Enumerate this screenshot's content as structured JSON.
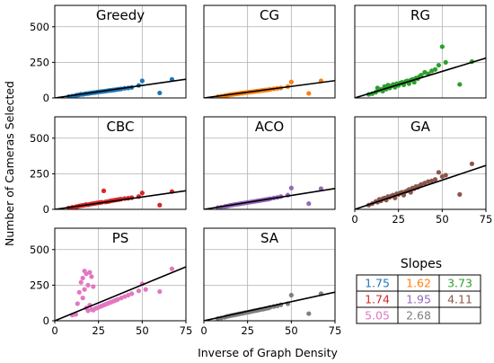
{
  "figure": {
    "xlabel": "Inverse of Graph Density",
    "ylabel": "Number of Cameras Selected"
  },
  "slopes_table": {
    "title": "Slopes",
    "rows": [
      [
        {
          "text": "1.75",
          "color": "#1f77b4"
        },
        {
          "text": "1.62",
          "color": "#ff7f0e"
        },
        {
          "text": "3.73",
          "color": "#2ca02c"
        }
      ],
      [
        {
          "text": "1.74",
          "color": "#d62728"
        },
        {
          "text": "1.95",
          "color": "#9467bd"
        },
        {
          "text": "4.11",
          "color": "#8c564b"
        }
      ],
      [
        {
          "text": "5.05",
          "color": "#e377c2"
        },
        {
          "text": "2.68",
          "color": "#7f7f7f"
        },
        {
          "text": "",
          "color": "#000000"
        }
      ]
    ]
  },
  "chart_data": [
    {
      "type": "scatter",
      "title": "Greedy",
      "color": "#1f77b4",
      "slope": 1.75,
      "xlim": [
        0,
        75
      ],
      "ylim": [
        0,
        650
      ],
      "xticks": [
        0,
        25,
        50,
        75
      ],
      "yticks": [
        0,
        250,
        500
      ],
      "grid": true,
      "x": [
        8,
        10,
        12,
        13,
        14,
        15,
        16,
        17,
        18,
        19,
        20,
        21,
        22,
        23,
        24,
        25,
        26,
        27,
        28,
        29,
        30,
        31,
        32,
        33,
        34,
        35,
        36,
        37,
        38,
        40,
        42,
        44,
        48,
        50,
        60,
        67
      ],
      "y": [
        10,
        13,
        18,
        20,
        22,
        26,
        25,
        28,
        30,
        31,
        33,
        35,
        37,
        38,
        40,
        42,
        44,
        45,
        46,
        48,
        50,
        52,
        53,
        55,
        56,
        58,
        60,
        62,
        63,
        68,
        70,
        74,
        88,
        120,
        35,
        130
      ]
    },
    {
      "type": "scatter",
      "title": "CG",
      "color": "#ff7f0e",
      "slope": 1.62,
      "xlim": [
        0,
        75
      ],
      "ylim": [
        0,
        650
      ],
      "xticks": [
        0,
        25,
        50,
        75
      ],
      "yticks": [
        0,
        250,
        500
      ],
      "grid": true,
      "x": [
        8,
        10,
        12,
        13,
        14,
        15,
        16,
        17,
        18,
        19,
        20,
        21,
        22,
        23,
        24,
        25,
        26,
        27,
        28,
        29,
        30,
        31,
        32,
        33,
        34,
        35,
        36,
        37,
        38,
        40,
        42,
        44,
        48,
        50,
        60,
        67
      ],
      "y": [
        9,
        12,
        16,
        18,
        20,
        23,
        24,
        26,
        28,
        29,
        31,
        33,
        34,
        36,
        38,
        39,
        41,
        42,
        44,
        45,
        47,
        48,
        50,
        52,
        53,
        55,
        56,
        58,
        60,
        64,
        67,
        70,
        80,
        112,
        32,
        120
      ]
    },
    {
      "type": "scatter",
      "title": "RG",
      "color": "#2ca02c",
      "slope": 3.73,
      "xlim": [
        0,
        75
      ],
      "ylim": [
        0,
        650
      ],
      "xticks": [
        0,
        25,
        50,
        75
      ],
      "yticks": [
        0,
        250,
        500
      ],
      "grid": true,
      "x": [
        8,
        10,
        12,
        13,
        14,
        15,
        16,
        17,
        18,
        19,
        20,
        21,
        22,
        23,
        24,
        25,
        26,
        27,
        28,
        29,
        30,
        31,
        32,
        33,
        34,
        35,
        36,
        37,
        38,
        40,
        42,
        44,
        46,
        48,
        50,
        52,
        60,
        67
      ],
      "y": [
        25,
        30,
        40,
        70,
        55,
        60,
        48,
        80,
        62,
        90,
        70,
        85,
        95,
        75,
        100,
        88,
        105,
        110,
        92,
        115,
        120,
        100,
        125,
        130,
        110,
        140,
        135,
        150,
        160,
        180,
        170,
        190,
        200,
        230,
        360,
        250,
        95,
        255
      ]
    },
    {
      "type": "scatter",
      "title": "CBC",
      "color": "#d62728",
      "slope": 1.74,
      "xlim": [
        0,
        75
      ],
      "ylim": [
        0,
        650
      ],
      "xticks": [
        0,
        25,
        50,
        75
      ],
      "yticks": [
        0,
        250,
        500
      ],
      "grid": true,
      "x": [
        8,
        10,
        12,
        13,
        14,
        15,
        16,
        17,
        18,
        19,
        20,
        21,
        22,
        23,
        24,
        25,
        26,
        27,
        28,
        29,
        30,
        31,
        32,
        33,
        34,
        35,
        36,
        37,
        38,
        40,
        42,
        44,
        48,
        50,
        60,
        67
      ],
      "y": [
        10,
        14,
        18,
        20,
        24,
        26,
        28,
        30,
        34,
        32,
        36,
        38,
        40,
        42,
        44,
        46,
        48,
        50,
        130,
        52,
        54,
        56,
        60,
        62,
        64,
        66,
        68,
        70,
        72,
        76,
        78,
        82,
        90,
        115,
        30,
        125
      ]
    },
    {
      "type": "scatter",
      "title": "ACO",
      "color": "#9467bd",
      "slope": 1.95,
      "xlim": [
        0,
        75
      ],
      "ylim": [
        0,
        650
      ],
      "xticks": [
        0,
        25,
        50,
        75
      ],
      "yticks": [
        0,
        250,
        500
      ],
      "grid": true,
      "x": [
        8,
        10,
        12,
        13,
        14,
        15,
        16,
        17,
        18,
        19,
        20,
        21,
        22,
        23,
        24,
        25,
        26,
        27,
        28,
        29,
        30,
        31,
        32,
        33,
        34,
        35,
        36,
        37,
        38,
        40,
        42,
        44,
        48,
        50,
        60,
        67
      ],
      "y": [
        12,
        15,
        20,
        22,
        25,
        28,
        30,
        32,
        35,
        36,
        38,
        40,
        42,
        44,
        46,
        48,
        50,
        52,
        54,
        56,
        58,
        60,
        62,
        64,
        66,
        68,
        70,
        72,
        75,
        80,
        84,
        90,
        100,
        150,
        40,
        145
      ]
    },
    {
      "type": "scatter",
      "title": "GA",
      "color": "#8c564b",
      "slope": 4.11,
      "xlim": [
        0,
        75
      ],
      "ylim": [
        0,
        650
      ],
      "xticks": [
        0,
        25,
        50,
        75
      ],
      "yticks": [
        0,
        250,
        500
      ],
      "grid": true,
      "x": [
        8,
        10,
        12,
        13,
        14,
        15,
        16,
        17,
        18,
        19,
        20,
        21,
        22,
        23,
        24,
        25,
        26,
        27,
        28,
        29,
        30,
        31,
        32,
        33,
        34,
        35,
        36,
        37,
        38,
        40,
        42,
        44,
        46,
        48,
        50,
        52,
        60,
        67
      ],
      "y": [
        30,
        40,
        55,
        50,
        70,
        60,
        75,
        80,
        65,
        90,
        85,
        95,
        100,
        80,
        110,
        105,
        115,
        120,
        100,
        125,
        130,
        140,
        120,
        150,
        145,
        160,
        155,
        165,
        175,
        185,
        195,
        200,
        210,
        260,
        230,
        240,
        105,
        320
      ]
    },
    {
      "type": "scatter",
      "title": "PS",
      "color": "#e377c2",
      "slope": 5.05,
      "xlim": [
        0,
        75
      ],
      "ylim": [
        0,
        650
      ],
      "xticks": [
        0,
        25,
        50,
        75
      ],
      "yticks": [
        0,
        250,
        500
      ],
      "grid": true,
      "x": [
        10,
        12,
        13,
        14,
        15,
        16,
        16,
        17,
        17,
        18,
        18,
        19,
        19,
        20,
        20,
        21,
        21,
        22,
        22,
        23,
        24,
        25,
        26,
        27,
        28,
        29,
        30,
        31,
        32,
        33,
        34,
        35,
        36,
        38,
        40,
        42,
        44,
        48,
        50,
        52,
        60,
        67
      ],
      "y": [
        40,
        45,
        120,
        200,
        270,
        300,
        160,
        350,
        220,
        330,
        90,
        250,
        70,
        340,
        110,
        80,
        310,
        75,
        240,
        85,
        90,
        95,
        100,
        105,
        110,
        115,
        120,
        125,
        130,
        135,
        140,
        145,
        150,
        160,
        170,
        180,
        190,
        210,
        260,
        220,
        205,
        365
      ]
    },
    {
      "type": "scatter",
      "title": "SA",
      "color": "#7f7f7f",
      "slope": 2.68,
      "xlim": [
        0,
        75
      ],
      "ylim": [
        0,
        650
      ],
      "xticks": [
        0,
        25,
        50,
        75
      ],
      "yticks": [
        0,
        250,
        500
      ],
      "grid": true,
      "x": [
        8,
        10,
        12,
        13,
        14,
        15,
        16,
        17,
        18,
        19,
        20,
        21,
        22,
        23,
        24,
        25,
        26,
        27,
        28,
        29,
        30,
        31,
        32,
        33,
        34,
        35,
        36,
        37,
        38,
        40,
        42,
        44,
        48,
        50,
        60,
        67
      ],
      "y": [
        15,
        20,
        25,
        30,
        32,
        35,
        38,
        40,
        42,
        45,
        48,
        50,
        52,
        55,
        58,
        60,
        62,
        65,
        68,
        70,
        72,
        75,
        78,
        80,
        82,
        85,
        88,
        90,
        95,
        100,
        105,
        112,
        120,
        180,
        50,
        190
      ]
    }
  ]
}
